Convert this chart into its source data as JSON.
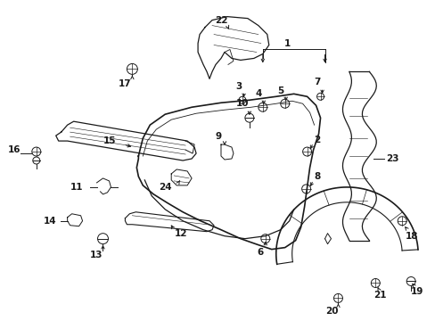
{
  "background": "#ffffff",
  "line_color": "#1a1a1a",
  "figsize": [
    4.89,
    3.6
  ],
  "dpi": 100
}
